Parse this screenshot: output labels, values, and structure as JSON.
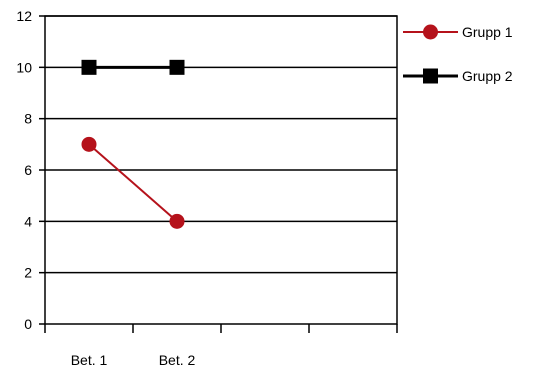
{
  "chart_data": {
    "type": "line",
    "categories": [
      "Bet. 1",
      "Bet. 2",
      "",
      ""
    ],
    "series": [
      {
        "name": "Grupp 1",
        "values": [
          7,
          4,
          null,
          null
        ],
        "color": "#b5121b",
        "marker": "circle"
      },
      {
        "name": "Grupp 2",
        "values": [
          10,
          10,
          null,
          null
        ],
        "color": "#000000",
        "marker": "square"
      }
    ],
    "ylim": [
      0,
      12
    ],
    "yticks": [
      "0",
      "2",
      "4",
      "6",
      "8",
      "10",
      "12"
    ],
    "grid": "horizontal",
    "legend_position": "right",
    "title": "",
    "xlabel": "",
    "ylabel": ""
  }
}
